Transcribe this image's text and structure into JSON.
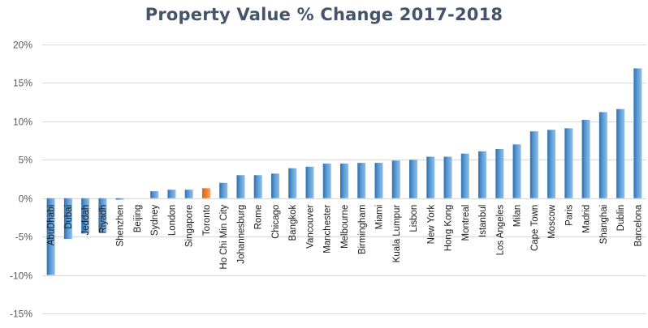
{
  "chart_data": {
    "type": "bar",
    "title": "Property Value % Change 2017-2018",
    "xlabel": "",
    "ylabel": "",
    "ylim": [
      -15,
      20
    ],
    "yticks": [
      20,
      15,
      10,
      5,
      0,
      -5,
      -10,
      -15
    ],
    "ytick_labels": [
      "20%",
      "15%",
      "10%",
      "5%",
      "0%",
      "-5%",
      "-10%",
      "-15%"
    ],
    "grid": true,
    "legend": "none",
    "categories": [
      "AbuDhabi",
      "Dubai",
      "Jeddah",
      "Riyadh",
      "Shenzhen",
      "Beijing",
      "Sydney",
      "London",
      "Singapore",
      "Toronto",
      "Ho Chi Min City",
      "Johannesburg",
      "Rome",
      "Chicago",
      "Bangkok",
      "Vancouver",
      "Manchester",
      "Melbourne",
      "Birmingham",
      "Miami",
      "Kuala Lumpur",
      "Lisbon",
      "New York",
      "Hong Kong",
      "Montreal",
      "Istanbul",
      "Los Angeles",
      "Milan",
      "Cape Town",
      "Moscow",
      "Paris",
      "Madrid",
      "Shanghai",
      "Dublin",
      "Barcelona"
    ],
    "values": [
      -10.0,
      -5.3,
      -4.6,
      -4.4,
      -0.2,
      0.0,
      0.9,
      1.1,
      1.1,
      1.3,
      2.0,
      3.0,
      3.0,
      3.2,
      3.9,
      4.1,
      4.5,
      4.5,
      4.6,
      4.6,
      4.9,
      5.0,
      5.4,
      5.4,
      5.8,
      6.1,
      6.4,
      7.0,
      8.7,
      8.9,
      9.1,
      10.2,
      11.2,
      11.6,
      16.9
    ],
    "highlight_index": 9
  },
  "colors": {
    "bar": "#5b9bd5",
    "bar_dark": "#3a78b5",
    "highlight": "#ed7d31",
    "grid": "#d9d9d9",
    "title": "#44546a"
  }
}
